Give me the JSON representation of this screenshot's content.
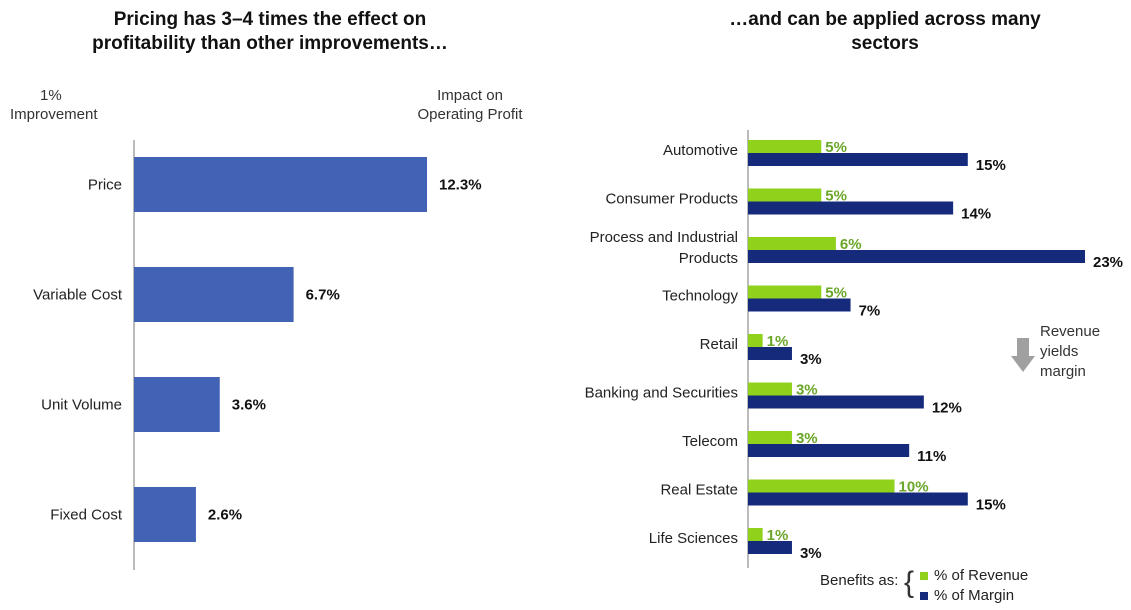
{
  "left": {
    "title_line1": "Pricing has 3–4 times the effect on",
    "title_line2": "profitability than other improvements…",
    "header_left_line1": "1%",
    "header_left_line2": "Improvement",
    "header_right_line1": "Impact on",
    "header_right_line2": "Operating Profit"
  },
  "right": {
    "title_line1": "…and can be applied across many",
    "title_line2": "sectors",
    "note_line1": "Revenue",
    "note_line2": "yields",
    "note_line3": "margin",
    "legend_label": "Benefits as:",
    "legend_revenue": "% of Revenue",
    "legend_margin": "% of Margin"
  },
  "colors": {
    "left_bar": "#4262b5",
    "revenue": "#8fd11b",
    "margin": "#152a7a",
    "revenue_text": "#6aa628",
    "arrow": "#a0a0a0"
  },
  "chart_data": [
    {
      "type": "bar",
      "orientation": "horizontal",
      "categories": [
        "Price",
        "Variable Cost",
        "Unit Volume",
        "Fixed Cost"
      ],
      "values": [
        12.3,
        6.7,
        3.6,
        2.6
      ],
      "labels": [
        "12.3%",
        "6.7%",
        "3.6%",
        "2.6%"
      ],
      "xlim": [
        0,
        15
      ],
      "grid": false
    },
    {
      "type": "bar",
      "orientation": "horizontal",
      "categories": [
        "Automotive",
        "Consumer Products",
        "Process and Industrial Products",
        "Technology",
        "Retail",
        "Banking and Securities",
        "Telecom",
        "Real Estate",
        "Life Sciences"
      ],
      "category_lines": [
        [
          "Automotive"
        ],
        [
          "Consumer Products"
        ],
        [
          "Process and Industrial",
          "Products"
        ],
        [
          "Technology"
        ],
        [
          "Retail"
        ],
        [
          "Banking and Securities"
        ],
        [
          "Telecom"
        ],
        [
          "Real Estate"
        ],
        [
          "Life Sciences"
        ]
      ],
      "series": [
        {
          "name": "% of Revenue",
          "values": [
            5,
            5,
            6,
            5,
            1,
            3,
            3,
            10,
            1
          ],
          "labels": [
            "5%",
            "5%",
            "6%",
            "5%",
            "1%",
            "3%",
            "3%",
            "10%",
            "1%"
          ]
        },
        {
          "name": "% of Margin",
          "values": [
            15,
            14,
            23,
            7,
            3,
            12,
            11,
            15,
            3
          ],
          "labels": [
            "15%",
            "14%",
            "23%",
            "7%",
            "3%",
            "12%",
            "11%",
            "15%",
            "3%"
          ]
        }
      ],
      "xlim": [
        0,
        25
      ],
      "legend": "bottom-right",
      "grid": false
    }
  ]
}
